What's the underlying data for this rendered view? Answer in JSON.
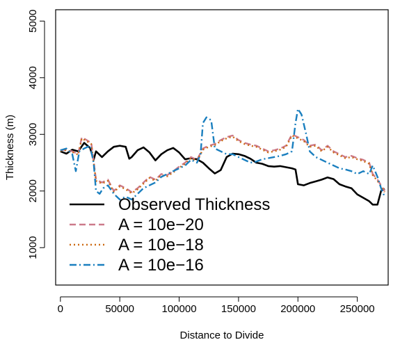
{
  "chart_data": {
    "type": "line",
    "xlabel": "Distance to Divide",
    "ylabel": "Thickness (m)",
    "xlim": [
      -4000,
      276000
    ],
    "ylim": [
      340,
      5200
    ],
    "x_ticks": [
      0,
      50000,
      100000,
      150000,
      200000,
      250000
    ],
    "x_tick_labels": [
      "0",
      "50000",
      "100000",
      "150000",
      "200000",
      "250000"
    ],
    "y_ticks": [
      1000,
      2000,
      3000,
      4000,
      5000
    ],
    "y_tick_labels": [
      "1000",
      "2000",
      "3000",
      "4000",
      "5000"
    ],
    "legend_position": "bottom-left",
    "series": [
      {
        "name": "Observed Thickness",
        "color": "#000000",
        "dash": "solid",
        "x": [
          0,
          5000,
          10000,
          15000,
          20000,
          25000,
          28000,
          30000,
          35000,
          40000,
          45000,
          50000,
          55000,
          58000,
          60000,
          65000,
          70000,
          75000,
          80000,
          85000,
          90000,
          95000,
          100000,
          105000,
          110000,
          115000,
          120000,
          125000,
          130000,
          135000,
          140000,
          145000,
          150000,
          155000,
          160000,
          165000,
          170000,
          175000,
          180000,
          185000,
          190000,
          195000,
          198000,
          200000,
          205000,
          210000,
          215000,
          220000,
          225000,
          230000,
          235000,
          240000,
          245000,
          250000,
          255000,
          260000,
          263000,
          267000,
          270000,
          273000
        ],
        "y": [
          2700,
          2660,
          2730,
          2700,
          2850,
          2760,
          2550,
          2700,
          2600,
          2700,
          2780,
          2800,
          2780,
          2570,
          2600,
          2720,
          2770,
          2680,
          2540,
          2650,
          2720,
          2760,
          2680,
          2560,
          2580,
          2560,
          2500,
          2400,
          2310,
          2370,
          2600,
          2660,
          2650,
          2620,
          2570,
          2500,
          2480,
          2440,
          2430,
          2440,
          2420,
          2400,
          2380,
          2120,
          2100,
          2140,
          2170,
          2200,
          2240,
          2210,
          2120,
          2080,
          2050,
          1940,
          1880,
          1820,
          1760,
          1760,
          2000,
          2040
        ]
      },
      {
        "name": "A = 10e−20",
        "color": "#cc7a8a",
        "dash": "dashed",
        "x": [
          0,
          5000,
          10000,
          15000,
          18000,
          22000,
          26000,
          30000,
          35000,
          40000,
          45000,
          50000,
          55000,
          60000,
          65000,
          70000,
          75000,
          80000,
          85000,
          90000,
          95000,
          100000,
          105000,
          110000,
          115000,
          120000,
          125000,
          130000,
          135000,
          140000,
          145000,
          150000,
          155000,
          160000,
          165000,
          170000,
          175000,
          180000,
          185000,
          190000,
          195000,
          200000,
          205000,
          210000,
          215000,
          220000,
          225000,
          230000,
          235000,
          240000,
          245000,
          250000,
          255000,
          260000,
          263000,
          267000,
          270000,
          273000
        ],
        "y": [
          2720,
          2730,
          2700,
          2650,
          2950,
          2900,
          2850,
          2200,
          2150,
          2200,
          2000,
          2100,
          2050,
          1980,
          2050,
          2150,
          2250,
          2200,
          2300,
          2280,
          2350,
          2430,
          2500,
          2600,
          2550,
          2750,
          2800,
          2830,
          2900,
          2950,
          2980,
          2900,
          2850,
          2820,
          2800,
          2750,
          2700,
          2720,
          2750,
          2800,
          3000,
          2950,
          2900,
          2800,
          2820,
          2720,
          2800,
          2700,
          2650,
          2600,
          2620,
          2580,
          2550,
          2500,
          2300,
          2200,
          2100,
          2000
        ]
      },
      {
        "name": "A = 10e−18",
        "color": "#cc6a14",
        "dash": "dotted",
        "x": [
          0,
          5000,
          10000,
          15000,
          18000,
          22000,
          26000,
          30000,
          35000,
          40000,
          45000,
          50000,
          55000,
          60000,
          65000,
          70000,
          75000,
          80000,
          85000,
          90000,
          95000,
          100000,
          105000,
          110000,
          115000,
          120000,
          125000,
          130000,
          135000,
          140000,
          145000,
          150000,
          155000,
          160000,
          165000,
          170000,
          175000,
          180000,
          185000,
          190000,
          195000,
          200000,
          205000,
          210000,
          215000,
          220000,
          225000,
          230000,
          235000,
          240000,
          245000,
          250000,
          255000,
          260000,
          263000,
          267000,
          270000,
          273000
        ],
        "y": [
          2710,
          2720,
          2690,
          2640,
          2930,
          2880,
          2830,
          2180,
          2130,
          2180,
          1980,
          2080,
          2030,
          1960,
          2030,
          2130,
          2230,
          2180,
          2280,
          2260,
          2330,
          2410,
          2480,
          2580,
          2530,
          2730,
          2780,
          2810,
          2880,
          2930,
          2960,
          2880,
          2830,
          2800,
          2780,
          2730,
          2680,
          2700,
          2730,
          2780,
          2980,
          2930,
          2880,
          2780,
          2800,
          2700,
          2780,
          2680,
          2630,
          2580,
          2600,
          2560,
          2530,
          2480,
          2280,
          2180,
          2080,
          1980
        ]
      },
      {
        "name": "A = 10e−16",
        "color": "#1a7fbf",
        "dash": "dashdot",
        "x": [
          0,
          5000,
          10000,
          13000,
          16000,
          20000,
          25000,
          28000,
          30000,
          33000,
          36000,
          40000,
          45000,
          50000,
          55000,
          60000,
          65000,
          70000,
          75000,
          80000,
          85000,
          90000,
          95000,
          100000,
          105000,
          110000,
          115000,
          118000,
          120000,
          123000,
          127000,
          130000,
          135000,
          140000,
          145000,
          150000,
          155000,
          160000,
          165000,
          170000,
          175000,
          180000,
          185000,
          190000,
          195000,
          198000,
          200000,
          203000,
          207000,
          210000,
          215000,
          220000,
          225000,
          230000,
          235000,
          240000,
          245000,
          250000,
          255000,
          260000,
          263000,
          267000,
          270000,
          273000
        ],
        "y": [
          2720,
          2750,
          2650,
          2350,
          2700,
          2750,
          2800,
          2500,
          2000,
          1950,
          2050,
          2100,
          1950,
          1850,
          1900,
          1850,
          1950,
          2050,
          2100,
          2150,
          2250,
          2300,
          2350,
          2400,
          2450,
          2550,
          2500,
          2650,
          3200,
          3300,
          3250,
          2750,
          2700,
          2650,
          2650,
          2600,
          2550,
          2500,
          2520,
          2560,
          2580,
          2600,
          2620,
          2650,
          2700,
          3200,
          3450,
          3350,
          3000,
          2700,
          2600,
          2550,
          2500,
          2450,
          2400,
          2380,
          2350,
          2300,
          2350,
          2300,
          2450,
          2250,
          2050,
          1900
        ]
      }
    ]
  }
}
